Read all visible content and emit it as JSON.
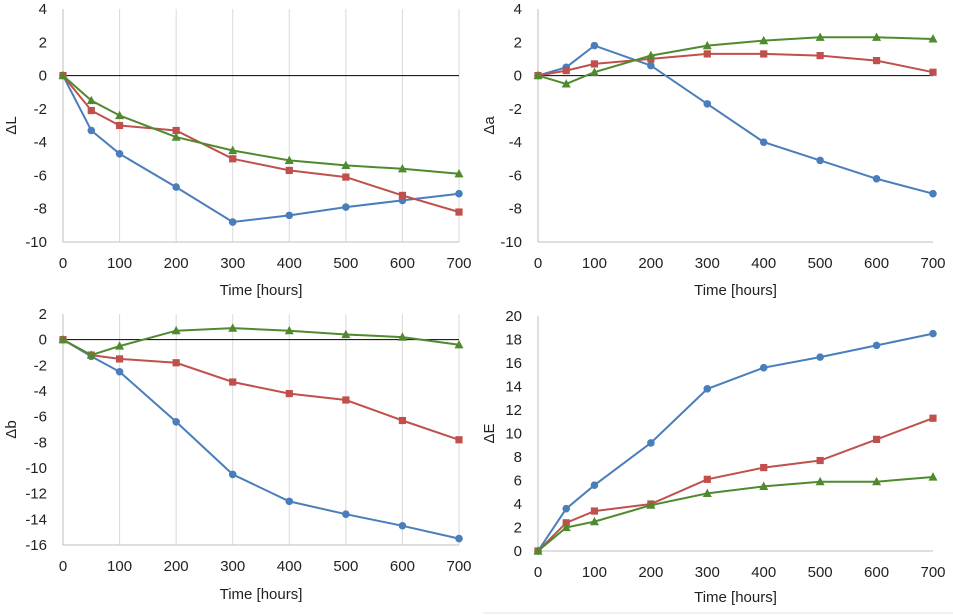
{
  "colors": {
    "blue": "#4a7ebb",
    "red": "#c0504d",
    "green": "#4f8a2e",
    "grid": "#d9d9d9",
    "zero": "#000000"
  },
  "chart_data": [
    {
      "type": "line",
      "xlabel": "Time [hours]",
      "ylabel": "ΔL",
      "xlim": [
        0,
        700
      ],
      "ylim": [
        -10,
        4
      ],
      "xticks": [
        0,
        100,
        200,
        300,
        400,
        500,
        600,
        700
      ],
      "yticks": [
        -10,
        -8,
        -6,
        -4,
        -2,
        0,
        2,
        4
      ],
      "x": [
        0,
        50,
        100,
        200,
        300,
        400,
        500,
        600,
        700
      ],
      "grid": "vertical",
      "series": [
        {
          "color": "#4a7ebb",
          "marker": "circle",
          "values": [
            0,
            -3.3,
            -4.7,
            -6.7,
            -8.8,
            -8.4,
            -7.9,
            -7.5,
            -7.1
          ]
        },
        {
          "color": "#c0504d",
          "marker": "square",
          "values": [
            0,
            -2.1,
            -3.0,
            -3.3,
            -5.0,
            -5.7,
            -6.1,
            -7.2,
            -8.2
          ]
        },
        {
          "color": "#4f8a2e",
          "marker": "triangle",
          "values": [
            0,
            -1.5,
            -2.4,
            -3.7,
            -4.5,
            -5.1,
            -5.4,
            -5.6,
            -5.9
          ]
        }
      ]
    },
    {
      "type": "line",
      "xlabel": "Time [hours]",
      "ylabel": "Δa",
      "xlim": [
        0,
        700
      ],
      "ylim": [
        -10,
        4
      ],
      "xticks": [
        0,
        100,
        200,
        300,
        400,
        500,
        600,
        700
      ],
      "yticks": [
        -10,
        -8,
        -6,
        -4,
        -2,
        0,
        2,
        4
      ],
      "x": [
        0,
        50,
        100,
        200,
        300,
        400,
        500,
        600,
        700
      ],
      "grid": "none",
      "series": [
        {
          "color": "#4a7ebb",
          "marker": "circle",
          "values": [
            0,
            0.5,
            1.8,
            0.6,
            -1.7,
            -4.0,
            -5.1,
            -6.2,
            -7.1
          ]
        },
        {
          "color": "#c0504d",
          "marker": "square",
          "values": [
            0,
            0.3,
            0.7,
            1.0,
            1.3,
            1.3,
            1.2,
            0.9,
            0.2
          ]
        },
        {
          "color": "#4f8a2e",
          "marker": "triangle",
          "values": [
            0,
            -0.5,
            0.2,
            1.2,
            1.8,
            2.1,
            2.3,
            2.3,
            2.2
          ]
        }
      ]
    },
    {
      "type": "line",
      "xlabel": "Time [hours]",
      "ylabel": "Δb",
      "xlim": [
        0,
        700
      ],
      "ylim": [
        -16,
        2
      ],
      "xticks": [
        0,
        100,
        200,
        300,
        400,
        500,
        600,
        700
      ],
      "yticks": [
        -16,
        -14,
        -12,
        -10,
        -8,
        -6,
        -4,
        -2,
        0,
        2
      ],
      "x": [
        0,
        50,
        100,
        200,
        300,
        400,
        500,
        600,
        700
      ],
      "grid": "vertical",
      "series": [
        {
          "color": "#4a7ebb",
          "marker": "circle",
          "values": [
            0,
            -1.3,
            -2.5,
            -6.4,
            -10.5,
            -12.6,
            -13.6,
            -14.5,
            -15.5
          ]
        },
        {
          "color": "#c0504d",
          "marker": "square",
          "values": [
            0,
            -1.2,
            -1.5,
            -1.8,
            -3.3,
            -4.2,
            -4.7,
            -6.3,
            -7.8
          ]
        },
        {
          "color": "#4f8a2e",
          "marker": "triangle",
          "values": [
            0,
            -1.2,
            -0.5,
            0.7,
            0.9,
            0.7,
            0.4,
            0.2,
            -0.4
          ]
        }
      ]
    },
    {
      "type": "line",
      "xlabel": "Time [hours]",
      "ylabel": "ΔE",
      "xlim": [
        0,
        700
      ],
      "ylim": [
        0,
        20
      ],
      "xticks": [
        0,
        100,
        200,
        300,
        400,
        500,
        600,
        700
      ],
      "yticks": [
        0,
        2,
        4,
        6,
        8,
        10,
        12,
        14,
        16,
        18,
        20
      ],
      "x": [
        0,
        50,
        100,
        200,
        300,
        400,
        500,
        600,
        700
      ],
      "grid": "none",
      "series": [
        {
          "color": "#4a7ebb",
          "marker": "circle",
          "values": [
            0,
            3.6,
            5.6,
            9.2,
            13.8,
            15.6,
            16.5,
            17.5,
            18.5
          ]
        },
        {
          "color": "#c0504d",
          "marker": "square",
          "values": [
            0,
            2.4,
            3.4,
            4.0,
            6.1,
            7.1,
            7.7,
            9.5,
            11.3
          ]
        },
        {
          "color": "#4f8a2e",
          "marker": "triangle",
          "values": [
            0,
            2.0,
            2.5,
            3.9,
            4.9,
            5.5,
            5.9,
            5.9,
            6.3
          ]
        }
      ]
    }
  ]
}
